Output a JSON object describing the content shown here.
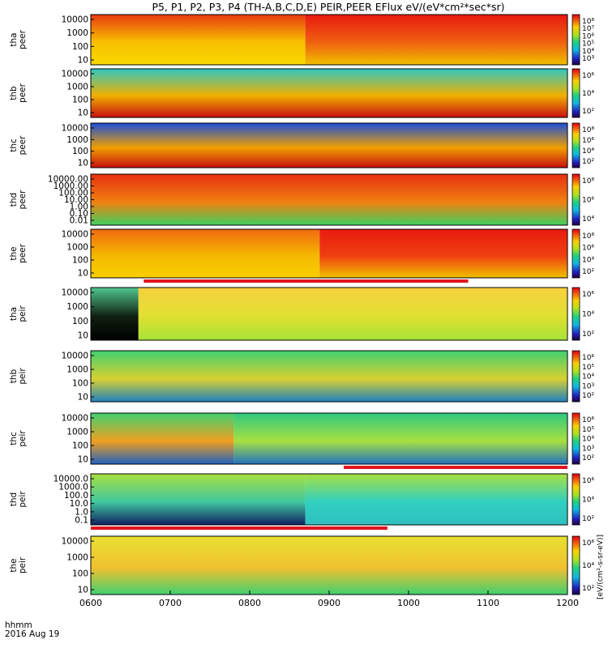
{
  "title": "P5, P1, P2, P3, P4 (TH-A,B,C,D,E) PEIR,PEER EFlux eV/(eV*cm²*sec*sr)",
  "time_label": "hhmm",
  "date_label": "2016 Aug 19",
  "colorbar_label": "[eV/(cm²-s-sr-eV)]",
  "colors": {
    "spectrogram_hot": "#e81a10",
    "spectrogram_warm": "#f5b400",
    "spectrogram_mid": "#a8e23a",
    "spectrogram_cool": "#19c8a8",
    "spectrogram_cold": "#1a4fd8",
    "flag_bar": "#e0141e"
  },
  "chart_data": {
    "type": "heatmap",
    "x_axis": {
      "label": "hhmm",
      "ticks": [
        "0600",
        "0700",
        "0800",
        "0900",
        "1000",
        "1100",
        "1200"
      ],
      "range": [
        "0600",
        "1200"
      ]
    },
    "panels": [
      {
        "probe": "tha",
        "species": "peer",
        "ylabel": [
          "tha",
          "peer"
        ],
        "yticks": [
          "10000",
          "1000",
          "100",
          "10"
        ],
        "cbar_ticks": [
          "10⁸",
          "10⁷",
          "10⁶",
          "10⁵",
          "10⁴",
          "10³"
        ],
        "bands": [
          {
            "t": [
              0,
              0.45
            ],
            "hi": "#e83a10",
            "mid": "#f8c000",
            "lo": "#f8d800"
          },
          {
            "t": [
              0.45,
              1
            ],
            "hi": "#e81a10",
            "mid": "#f06010",
            "lo": "#f0c000"
          }
        ]
      },
      {
        "probe": "thb",
        "species": "peer",
        "ylabel": [
          "thb",
          "peer"
        ],
        "yticks": [
          "10000",
          "1000",
          "100",
          "10"
        ],
        "cbar_ticks": [
          "10⁶",
          "10⁴",
          "10²"
        ],
        "bands": [
          {
            "t": [
              0,
              1
            ],
            "hi": "#30c8c0",
            "mid": "#f0b000",
            "lo": "#c81010"
          }
        ]
      },
      {
        "probe": "thc",
        "species": "peer",
        "ylabel": [
          "thc",
          "peer"
        ],
        "yticks": [
          "10000",
          "1000",
          "100",
          "10"
        ],
        "cbar_ticks": [
          "10⁸",
          "10⁶",
          "10⁴",
          "10²"
        ],
        "bands": [
          {
            "t": [
              0,
              1
            ],
            "hi": "#1a4fd8",
            "mid": "#f0a000",
            "lo": "#c81010"
          }
        ]
      },
      {
        "probe": "thd",
        "species": "peer",
        "ylabel": [
          "thd",
          "peer"
        ],
        "yticks": [
          "10000.00",
          "1000.00",
          "100.00",
          "10.00",
          "1.00",
          "0.10",
          "0.01"
        ],
        "cbar_ticks": [
          "10⁸",
          "10⁶",
          "10⁴"
        ],
        "bands": [
          {
            "t": [
              0,
              1
            ],
            "hi": "#e83010",
            "mid": "#f08010",
            "lo": "#40d060"
          }
        ]
      },
      {
        "probe": "the",
        "species": "peer",
        "ylabel": [
          "the",
          "peer"
        ],
        "yticks": [
          "10000",
          "1000",
          "100",
          "10"
        ],
        "cbar_ticks": [
          "10⁸",
          "10⁶",
          "10⁴",
          "10²"
        ],
        "bands": [
          {
            "t": [
              0,
              0.48
            ],
            "hi": "#f06a10",
            "mid": "#f5b800",
            "lo": "#f8d000"
          },
          {
            "t": [
              0.48,
              1
            ],
            "hi": "#e81a10",
            "mid": "#f04010",
            "lo": "#f0c000"
          }
        ]
      },
      {
        "probe": "tha",
        "species": "peir",
        "ylabel": [
          "tha",
          "peir"
        ],
        "yticks": [
          "10000",
          "1000",
          "100",
          "10"
        ],
        "cbar_ticks": [
          "10⁶",
          "10⁴",
          "10²"
        ],
        "bands": [
          {
            "t": [
              0,
              0.1
            ],
            "hi": "#50c890",
            "mid": "#102010",
            "lo": "#000000"
          },
          {
            "t": [
              0.1,
              1
            ],
            "hi": "#f8d040",
            "mid": "#e0e030",
            "lo": "#a8e23a"
          }
        ]
      },
      {
        "probe": "thb",
        "species": "peir",
        "ylabel": [
          "thb",
          "peir"
        ],
        "yticks": [
          "10000",
          "1000",
          "100",
          "10"
        ],
        "cbar_ticks": [
          "10⁶",
          "10⁵",
          "10⁴",
          "10³",
          "10²"
        ],
        "bands": [
          {
            "t": [
              0,
              1
            ],
            "hi": "#40d070",
            "mid": "#d8d030",
            "lo": "#2080c0"
          }
        ]
      },
      {
        "probe": "thc",
        "species": "peir",
        "ylabel": [
          "thc",
          "peir"
        ],
        "yticks": [
          "10000",
          "1000",
          "100",
          "10"
        ],
        "cbar_ticks": [
          "10⁶",
          "10⁵",
          "10⁴",
          "10³",
          "10²"
        ],
        "bands": [
          {
            "t": [
              0,
              0.3
            ],
            "hi": "#40d070",
            "mid": "#f0a020",
            "lo": "#2060c0"
          },
          {
            "t": [
              0.3,
              1
            ],
            "hi": "#30c880",
            "mid": "#a8e040",
            "lo": "#2070c0"
          }
        ]
      },
      {
        "probe": "thd",
        "species": "peir",
        "ylabel": [
          "thd",
          "peir"
        ],
        "yticks": [
          "10000.0",
          "1000.0",
          "100.0",
          "10.0",
          "1.0",
          "0.1"
        ],
        "cbar_ticks": [
          "10⁶",
          "10⁴",
          "10²"
        ],
        "bands": [
          {
            "t": [
              0,
              0.45
            ],
            "hi": "#a8e040",
            "mid": "#40c8a0",
            "lo": "#102060"
          },
          {
            "t": [
              0.45,
              1
            ],
            "hi": "#a8e040",
            "mid": "#30d0c0",
            "lo": "#30c0c0"
          }
        ]
      },
      {
        "probe": "the",
        "species": "peir",
        "ylabel": [
          "the",
          "peir"
        ],
        "yticks": [
          "10000",
          "1000",
          "100",
          "10"
        ],
        "cbar_ticks": [
          "10⁶",
          "10⁴",
          "10²"
        ],
        "bands": [
          {
            "t": [
              0,
              1
            ],
            "hi": "#e8e030",
            "mid": "#f0c030",
            "lo": "#40d070"
          }
        ]
      }
    ],
    "flag_bars": [
      {
        "after_panel": 4,
        "from": "0640",
        "to": "1045"
      },
      {
        "after_panel": 7,
        "from": "0911",
        "to": "1200"
      },
      {
        "after_panel": 8,
        "from": "0600",
        "to": "0944"
      }
    ]
  }
}
